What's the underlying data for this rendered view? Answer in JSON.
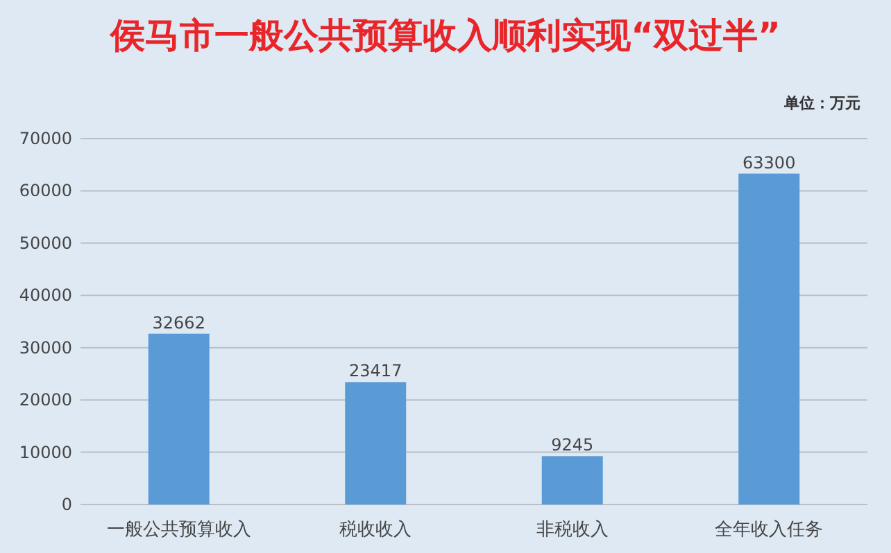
{
  "chart_data": {
    "type": "bar",
    "title": "侯马市一般公共预算收入顺利实现“双过半”",
    "annotations": [
      "单位：万元"
    ],
    "categories": [
      "一般公共预算收入",
      "税收收入",
      "非税收入",
      "全年收入任务"
    ],
    "values": [
      32662,
      23417,
      9245,
      63300
    ],
    "color": "#5b9bd5",
    "ylim": [
      0,
      70000
    ],
    "yticks": [
      0,
      10000,
      20000,
      30000,
      40000,
      50000,
      60000,
      70000
    ],
    "grid": "y",
    "data_labels": true
  }
}
